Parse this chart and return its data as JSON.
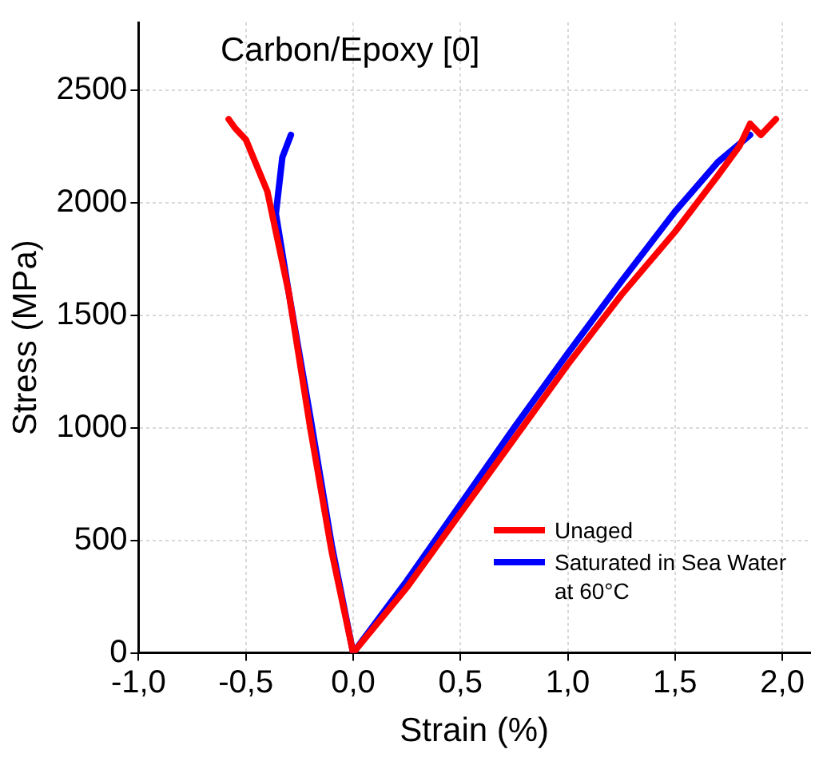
{
  "chart_data": {
    "type": "line",
    "title": "Carbon/Epoxy [0]",
    "xlabel": "Strain (%)",
    "ylabel": "Stress (MPa)",
    "xlim": [
      -1,
      2.13
    ],
    "ylim": [
      0,
      2800
    ],
    "xticks": [
      {
        "value": -1,
        "label": "-1,0"
      },
      {
        "value": -0.5,
        "label": "-0,5"
      },
      {
        "value": 0,
        "label": "0,0"
      },
      {
        "value": 0.5,
        "label": "0,5"
      },
      {
        "value": 1,
        "label": "1,0"
      },
      {
        "value": 1.5,
        "label": "1,5"
      },
      {
        "value": 2,
        "label": "2,0"
      }
    ],
    "yticks": [
      0,
      500,
      1000,
      1500,
      2000,
      2500
    ],
    "grid": true,
    "legend": "bottom right",
    "marker": "none",
    "line_style": "solid",
    "series": [
      {
        "name": "Unaged",
        "color": "#ff0000",
        "x": [
          0,
          0.25,
          0.5,
          0.75,
          1.0,
          1.25,
          1.5,
          1.7,
          1.8,
          1.85,
          1.9,
          1.97
        ],
        "values": [
          0,
          290,
          620,
          950,
          1280,
          1590,
          1870,
          2120,
          2250,
          2350,
          2300,
          2370
        ]
      },
      {
        "color": "#ff0000",
        "x": [
          0,
          -0.1,
          -0.2,
          -0.3,
          -0.4,
          -0.5,
          -0.55,
          -0.58
        ],
        "values": [
          0,
          450,
          1000,
          1600,
          2050,
          2280,
          2330,
          2370
        ]
      },
      {
        "name": "Saturated in Sea Water at 60°C",
        "color": "#0000ff",
        "x": [
          0,
          0.25,
          0.5,
          0.75,
          1.0,
          1.25,
          1.5,
          1.7,
          1.85
        ],
        "values": [
          0,
          320,
          660,
          1000,
          1330,
          1650,
          1960,
          2180,
          2300
        ]
      },
      {
        "color": "#0000ff",
        "x": [
          0,
          -0.1,
          -0.2,
          -0.3,
          -0.36,
          -0.33,
          -0.29
        ],
        "values": [
          0,
          480,
          1050,
          1600,
          1950,
          2200,
          2300
        ]
      }
    ]
  }
}
